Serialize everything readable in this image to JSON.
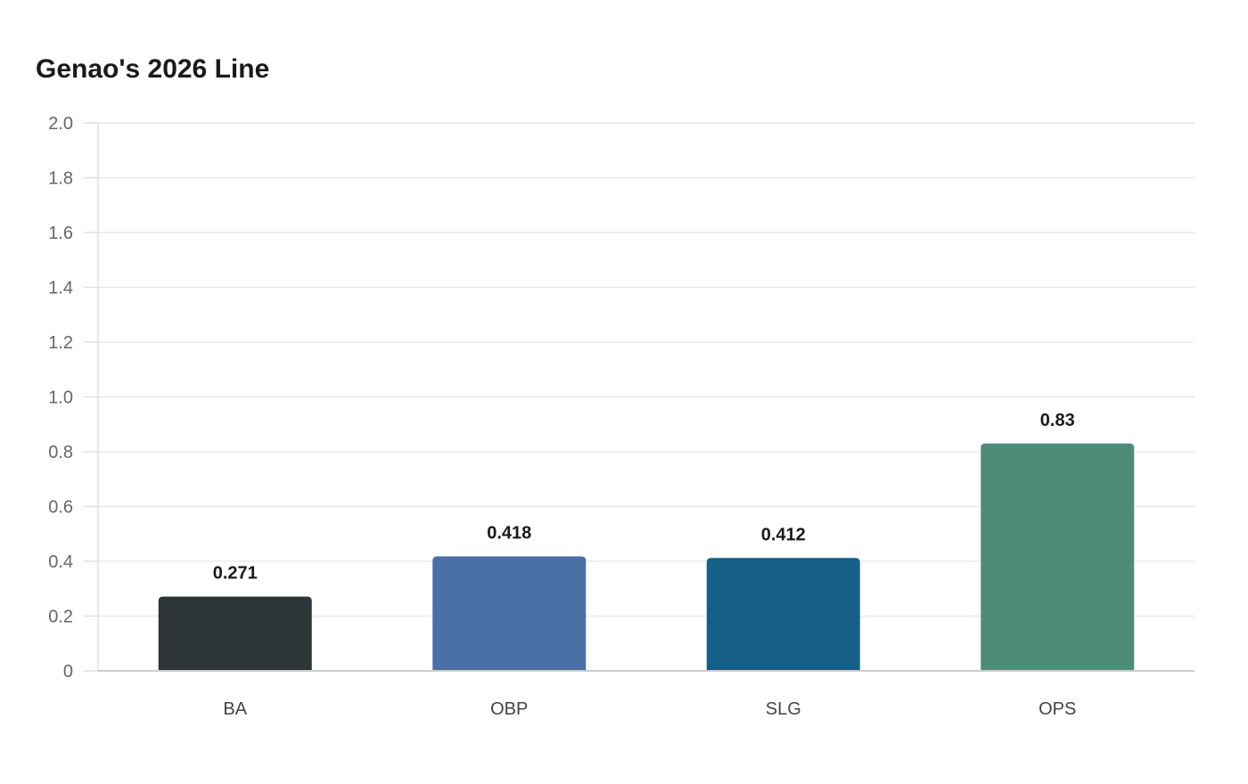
{
  "chart_data": {
    "type": "bar",
    "title": "Genao's 2026 Line",
    "xlabel": "",
    "ylabel": "",
    "categories": [
      "BA",
      "OBP",
      "SLG",
      "OPS"
    ],
    "values": [
      0.271,
      0.418,
      0.412,
      0.83
    ],
    "value_labels": [
      "0.271",
      "0.418",
      "0.412",
      "0.83"
    ],
    "colors": [
      "#2e3537",
      "#4a6fa5",
      "#166088",
      "#4e8c7a"
    ],
    "ylim": [
      0,
      2.0
    ],
    "yticks": [
      0,
      0.2,
      0.4,
      0.6,
      0.8,
      1.0,
      1.2,
      1.4,
      1.6,
      1.8,
      2.0
    ],
    "ytick_labels": [
      "0",
      "0.2",
      "0.4",
      "0.6",
      "0.8",
      "1.0",
      "1.2",
      "1.4",
      "1.6",
      "1.8",
      "2.0"
    ],
    "grid": true,
    "legend": "none"
  }
}
